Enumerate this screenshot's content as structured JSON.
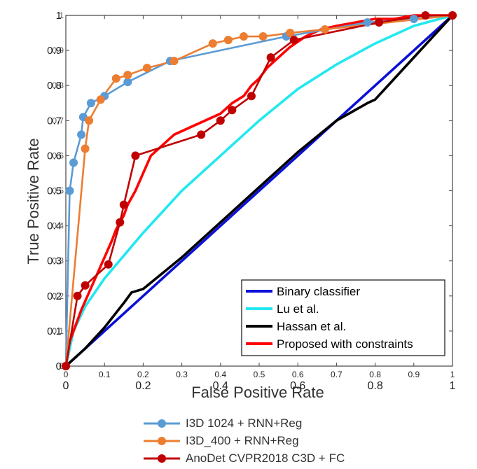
{
  "chart_data": {
    "type": "line",
    "xlabel": "False Positive Rate",
    "ylabel": "True Positive Rate",
    "xlim": [
      0,
      1
    ],
    "ylim": [
      0,
      1
    ],
    "x_ticks_major": [
      "0",
      "0.2",
      "0.4",
      "0.6",
      "0.8",
      "1"
    ],
    "x_ticks_minor": [
      "0",
      "0.1",
      "0.2",
      "0.3",
      "0.4",
      "0.5",
      "0.6",
      "0.7",
      "0.8",
      "0.9",
      "1"
    ],
    "y_ticks": [
      "0",
      "0.1",
      "0.2",
      "0.3",
      "0.4",
      "0.5",
      "0.6",
      "0.7",
      "0.8",
      "0.9",
      "1"
    ],
    "grid": false,
    "inner_legend": {
      "placement": "bottom-right",
      "entries": [
        {
          "name": "Binary classifier",
          "color": "#0a10d8"
        },
        {
          "name": "Lu et al.",
          "color": "#22e8f0"
        },
        {
          "name": "Hassan et al.",
          "color": "#000000"
        },
        {
          "name": "Proposed with constraints",
          "color": "#ff0000"
        }
      ]
    },
    "outer_legend": {
      "placement": "bottom",
      "entries": [
        {
          "name": "I3D 1024 + RNN+Reg",
          "color": "#5b9bd5"
        },
        {
          "name": "I3D_400 + RNN+Reg",
          "color": "#ed7d31"
        },
        {
          "name": "AnoDet CVPR2018 C3D + FC",
          "color": "#c00000"
        }
      ]
    },
    "series": [
      {
        "name": "Binary classifier",
        "color": "#0a10d8",
        "markers": false,
        "x": [
          0,
          0.2,
          0.4,
          0.6,
          0.8,
          1.0
        ],
        "y": [
          0,
          0.2,
          0.4,
          0.6,
          0.8,
          1.0
        ]
      },
      {
        "name": "Lu et al.",
        "color": "#22e8f0",
        "markers": false,
        "x": [
          0,
          0.02,
          0.05,
          0.1,
          0.2,
          0.3,
          0.4,
          0.5,
          0.6,
          0.7,
          0.8,
          0.9,
          1.0
        ],
        "y": [
          0,
          0.1,
          0.17,
          0.25,
          0.38,
          0.5,
          0.6,
          0.7,
          0.79,
          0.86,
          0.92,
          0.97,
          1.0
        ]
      },
      {
        "name": "Hassan et al.",
        "color": "#000000",
        "markers": false,
        "x": [
          0,
          0.05,
          0.1,
          0.15,
          0.17,
          0.2,
          0.3,
          0.4,
          0.5,
          0.6,
          0.7,
          0.78,
          0.8,
          0.9,
          1.0
        ],
        "y": [
          0,
          0.05,
          0.11,
          0.18,
          0.21,
          0.22,
          0.31,
          0.41,
          0.51,
          0.61,
          0.7,
          0.75,
          0.76,
          0.88,
          1.0
        ]
      },
      {
        "name": "Proposed with constraints",
        "color": "#ff0000",
        "markers": false,
        "x": [
          0,
          0.01,
          0.02,
          0.04,
          0.06,
          0.08,
          0.1,
          0.12,
          0.13,
          0.15,
          0.16,
          0.18,
          0.2,
          0.22,
          0.25,
          0.28,
          0.32,
          0.36,
          0.4,
          0.43,
          0.46,
          0.48,
          0.5,
          0.52,
          0.55,
          0.58,
          0.62,
          0.66,
          0.7,
          0.75,
          0.8,
          0.85,
          0.9,
          0.95,
          1.0
        ],
        "y": [
          0,
          0.07,
          0.1,
          0.16,
          0.21,
          0.26,
          0.31,
          0.36,
          0.39,
          0.43,
          0.46,
          0.5,
          0.55,
          0.6,
          0.63,
          0.66,
          0.68,
          0.7,
          0.72,
          0.75,
          0.77,
          0.8,
          0.82,
          0.85,
          0.88,
          0.91,
          0.94,
          0.96,
          0.97,
          0.98,
          0.99,
          0.99,
          1.0,
          1.0,
          1.0
        ]
      },
      {
        "name": "I3D 1024 + RNN+Reg",
        "color": "#5b9bd5",
        "markers": true,
        "x": [
          0,
          0.01,
          0.02,
          0.04,
          0.045,
          0.065,
          0.1,
          0.16,
          0.27,
          0.57,
          0.78,
          0.9,
          1.0
        ],
        "y": [
          0,
          0.5,
          0.58,
          0.66,
          0.71,
          0.75,
          0.77,
          0.81,
          0.87,
          0.94,
          0.98,
          0.99,
          1.0
        ]
      },
      {
        "name": "I3D_400 + RNN+Reg",
        "color": "#ed7d31",
        "markers": true,
        "x": [
          0,
          0.05,
          0.06,
          0.09,
          0.13,
          0.16,
          0.21,
          0.28,
          0.38,
          0.42,
          0.46,
          0.51,
          0.58,
          0.67,
          1.0
        ],
        "y": [
          0,
          0.62,
          0.7,
          0.76,
          0.82,
          0.83,
          0.85,
          0.87,
          0.92,
          0.93,
          0.94,
          0.94,
          0.95,
          0.96,
          1.0
        ]
      },
      {
        "name": "AnoDet CVPR2018 C3D + FC",
        "color": "#c00000",
        "markers": true,
        "x": [
          0,
          0.03,
          0.05,
          0.11,
          0.14,
          0.15,
          0.18,
          0.35,
          0.4,
          0.43,
          0.48,
          0.53,
          0.59,
          0.81,
          0.93,
          1.0
        ],
        "y": [
          0,
          0.2,
          0.23,
          0.29,
          0.41,
          0.46,
          0.6,
          0.66,
          0.7,
          0.73,
          0.77,
          0.88,
          0.93,
          0.98,
          1.0,
          1.0
        ]
      }
    ]
  }
}
